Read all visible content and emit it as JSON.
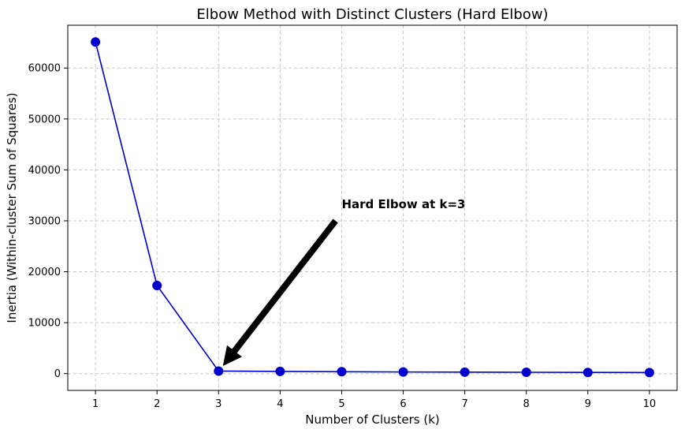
{
  "chart_data": {
    "type": "line",
    "title": "Elbow Method with Distinct Clusters (Hard Elbow)",
    "xlabel": "Number of Clusters (k)",
    "ylabel": "Inertia (Within-cluster Sum of Squares)",
    "x": [
      1,
      2,
      3,
      4,
      5,
      6,
      7,
      8,
      9,
      10
    ],
    "series": [
      {
        "values": [
          65100,
          17300,
          500,
          430,
          370,
          320,
          290,
          260,
          230,
          210
        ],
        "color": "#0000cc",
        "marker": "circle"
      }
    ],
    "xticks": [
      "1",
      "2",
      "3",
      "4",
      "5",
      "6",
      "7",
      "8",
      "9",
      "10"
    ],
    "yticks": [
      "0",
      "10000",
      "20000",
      "30000",
      "40000",
      "50000",
      "60000"
    ],
    "yticks_values": [
      0,
      10000,
      20000,
      30000,
      40000,
      50000,
      60000
    ],
    "xlim": [
      0.55,
      10.45
    ],
    "ylim": [
      -3300,
      68400
    ],
    "grid": true,
    "annotation": {
      "text": "Hard Elbow at k=3",
      "point": [
        3,
        500
      ],
      "text_pos": [
        5,
        32500
      ],
      "arrow_tail": [
        4.9,
        30000
      ],
      "arrow_tip": [
        3.07,
        1500
      ]
    }
  }
}
